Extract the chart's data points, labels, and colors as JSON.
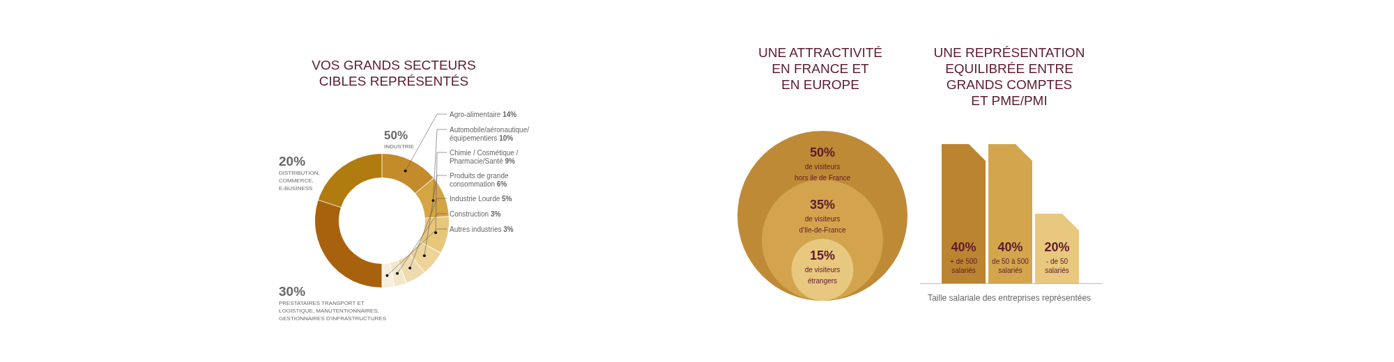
{
  "chart_data": [
    {
      "type": "donut",
      "title": "VOS GRANDS SECTEURS\nCIBLES REPRÉSENTÉS",
      "categories": [
        "Agro-alimentaire",
        "Automobile/aéronautique/\néquipementiers",
        "Chimie / Cosmétique /\nPharmacie/Santé",
        "Produits de grande\nconsommation",
        "Industrie Lourde",
        "Construction",
        "Autres industries",
        "PRESTATAIRES TRANSPORT ET\nLOGISTIQUE, MANUTENTIONNAIRES,\nGESTIONNAIRES D'INFRASTRUCTURES",
        "DISTRIBUTION,\nCOMMERCE,\nE-BUSINESS"
      ],
      "values": [
        14,
        10,
        9,
        6,
        5,
        3,
        3,
        30,
        20
      ],
      "value_labels": [
        "14%",
        "10%",
        "9%",
        "6%",
        "5%",
        "3%",
        "3%",
        "30%",
        "20%"
      ],
      "colors": [
        "#c48b2b",
        "#d5a543",
        "#e8c77a",
        "#edd397",
        "#efdab0",
        "#f3e6c9",
        "#f7efdd",
        "#a8620e",
        "#b07c10"
      ],
      "annotations": [
        "50%",
        "INDUSTRIE"
      ]
    },
    {
      "type": "other",
      "title": "UNE ATTRACTIVITÉ\nEN FRANCE ET\nEN EUROPE",
      "categories": [
        "de visiteurs\nhors ile de France",
        "de visiteurs\nd'Ile-de-France",
        "de visiteurs\nétrangers"
      ],
      "values": [
        50,
        35,
        15
      ],
      "value_labels": [
        "50%",
        "35%",
        "15%"
      ],
      "colors": [
        "#be8a35",
        "#d3a44d",
        "#e8c87f"
      ]
    },
    {
      "type": "bar",
      "title": "UNE REPRÉSENTATION\nEQUILIBRÉE ENTRE\nGRANDS COMPTES\nET PME/PMI",
      "categories": [
        "+ de 500\nsalariés",
        "de 50 à 500\nsalariés",
        "- de 50\nsalariés"
      ],
      "values": [
        40,
        40,
        20
      ],
      "value_labels": [
        "40%",
        "40%",
        "20%"
      ],
      "colors": [
        "#bb8430",
        "#d3a64e",
        "#e8c77e"
      ],
      "ylim": [
        0,
        40
      ],
      "tick_labels": false,
      "xlabel": "Taille salariale des entreprises représentées"
    }
  ]
}
